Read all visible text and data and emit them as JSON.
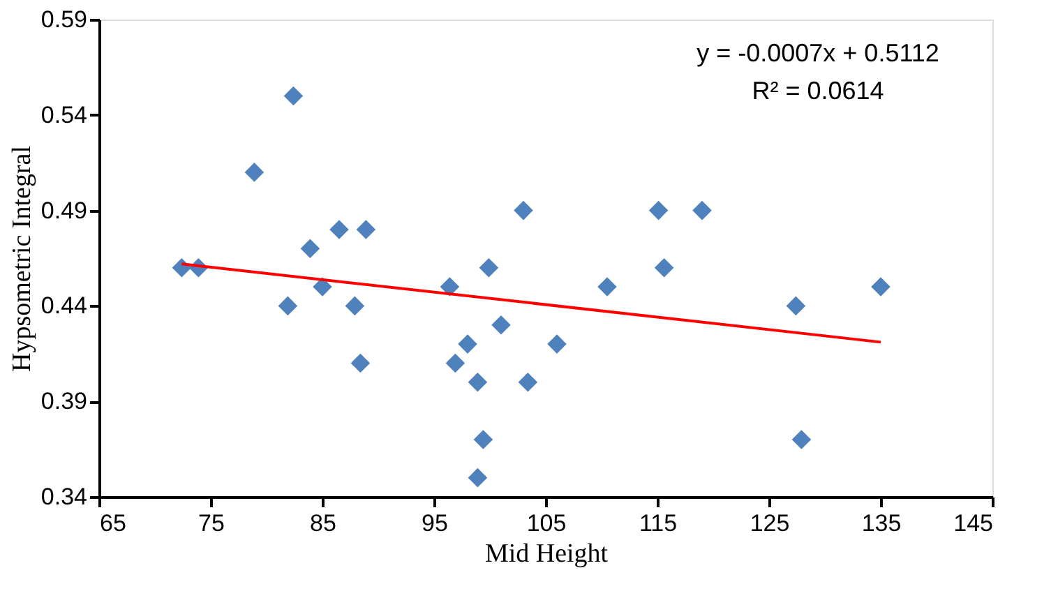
{
  "chart_data": {
    "type": "scatter",
    "xlabel": "Mid  Height",
    "ylabel": "Hypsometric Integral",
    "x": [
      72.4,
      73.9,
      82.4,
      78.9,
      83.9,
      86.5,
      88.9,
      85.0,
      81.9,
      87.9,
      88.4,
      96.4,
      99.9,
      103.0,
      101.0,
      98.0,
      96.9,
      98.9,
      103.4,
      99.4,
      98.9,
      106.0,
      110.5,
      115.1,
      119.0,
      115.6,
      127.4,
      127.9,
      135.0
    ],
    "series": [
      {
        "color": "#4f81bd",
        "marker": "diamond",
        "values": [
          0.46,
          0.46,
          0.55,
          0.51,
          0.47,
          0.48,
          0.48,
          0.45,
          0.44,
          0.44,
          0.41,
          0.45,
          0.46,
          0.49,
          0.43,
          0.42,
          0.41,
          0.4,
          0.4,
          0.37,
          0.35,
          0.42,
          0.45,
          0.49,
          0.49,
          0.46,
          0.44,
          0.37,
          0.45
        ]
      },
      {
        "type": "line",
        "color": "#ff0000",
        "line_style": "solid",
        "x": [
          72.4,
          135.0
        ],
        "values": [
          0.462,
          0.421
        ]
      }
    ],
    "xlim": [
      65,
      145
    ],
    "xticks": [
      65,
      75,
      85,
      95,
      105,
      115,
      125,
      135,
      145
    ],
    "ylim": [
      0.34,
      0.59
    ],
    "yticks": [
      0.34,
      0.39,
      0.44,
      0.49,
      0.54,
      0.59
    ],
    "grid": false,
    "annotations": [
      "y = -0.0007x + 0.5112",
      "R² = 0.0614"
    ]
  }
}
